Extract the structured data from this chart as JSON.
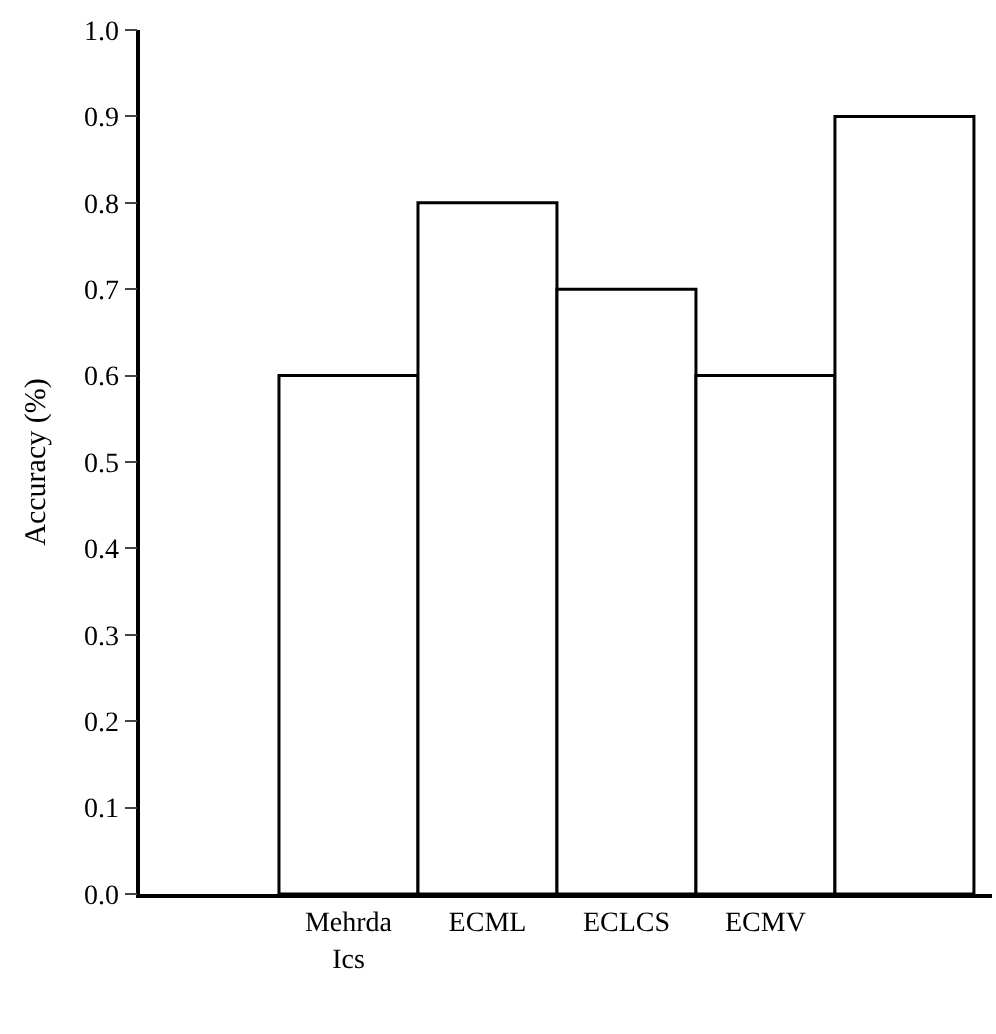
{
  "chart_data": {
    "type": "bar",
    "ylabel": "Accuracy (%)",
    "categories": [
      "Mehrda\nIcs",
      "ECML",
      "ECLCS",
      "ECMV",
      null
    ],
    "values": [
      0.6,
      0.8,
      0.7,
      0.6,
      0.9
    ],
    "color": "#ffffff",
    "ylim": [
      0,
      1.0
    ],
    "yticks": [
      {
        "value": 0,
        "label": "0.0"
      },
      {
        "value": 0.1,
        "label": "0.1"
      },
      {
        "value": 0.2,
        "label": "0.2"
      },
      {
        "value": 0.3,
        "label": "0.3"
      },
      {
        "value": 0.4,
        "label": "0.4"
      },
      {
        "value": 0.5,
        "label": "0.5"
      },
      {
        "value": 0.6,
        "label": "0.6"
      },
      {
        "value": 0.7,
        "label": "0.7"
      },
      {
        "value": 0.8,
        "label": "0.8"
      },
      {
        "value": 0.9,
        "label": "0.9"
      },
      {
        "value": 1.0,
        "label": "1.0"
      }
    ]
  }
}
